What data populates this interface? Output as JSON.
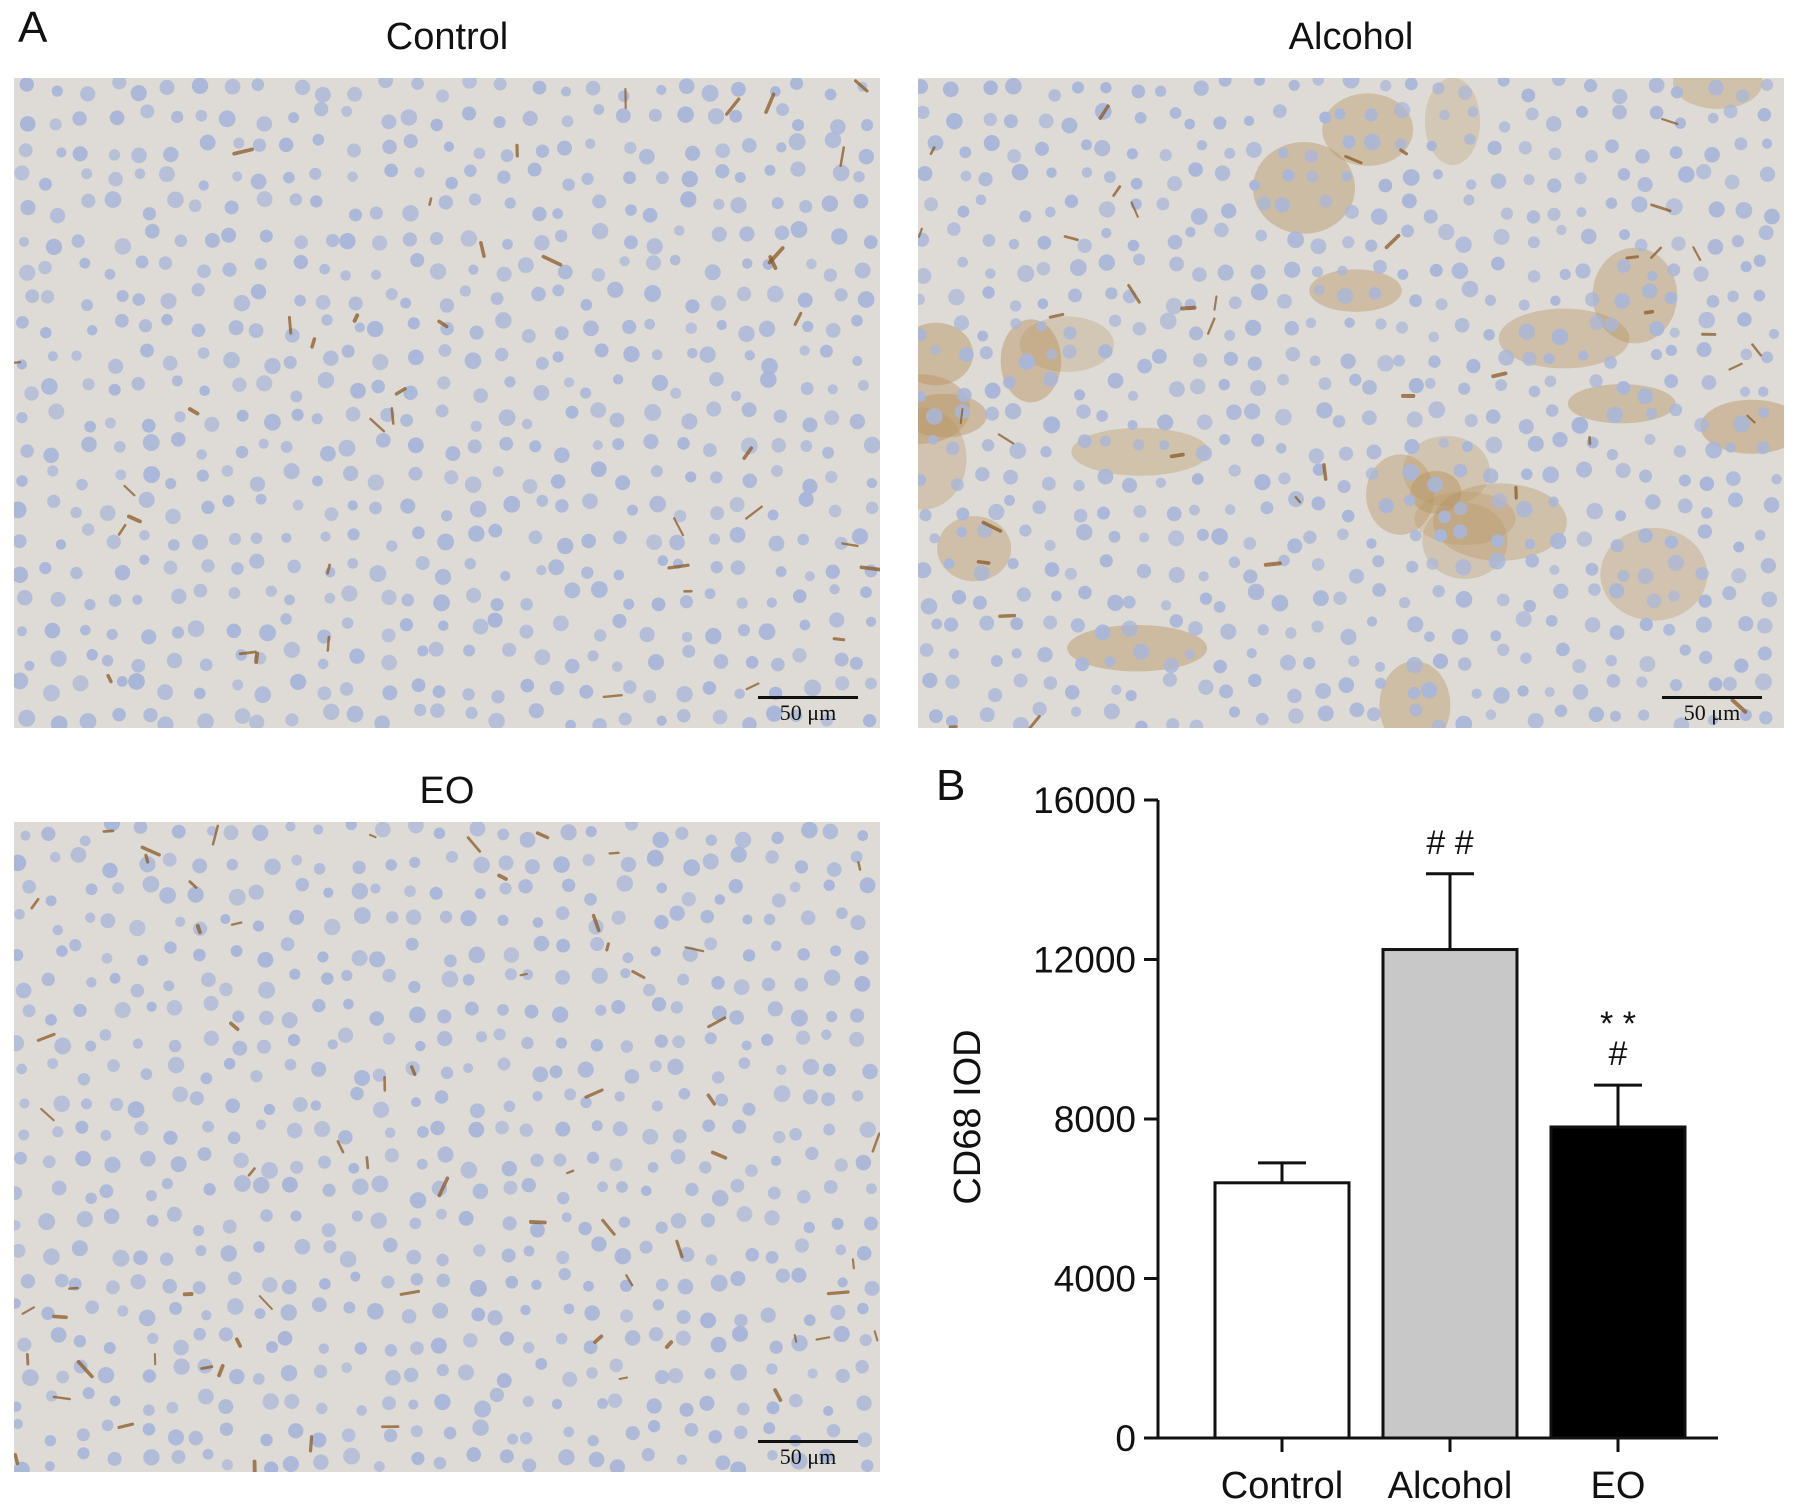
{
  "panel_a": {
    "letter": "A",
    "micrographs": [
      {
        "title": "Control",
        "scale_label": "50 μm",
        "staining": "sparse"
      },
      {
        "title": "Alcohol",
        "scale_label": "50 μm",
        "staining": "heavy"
      },
      {
        "title": "EO",
        "scale_label": "50 μm",
        "staining": "moderate"
      }
    ]
  },
  "panel_b": {
    "letter": "B"
  },
  "chart_data": {
    "type": "bar",
    "categories": [
      "Control",
      "Alcohol",
      "EO"
    ],
    "values": [
      6400,
      12250,
      7800
    ],
    "errors": [
      500,
      1900,
      1050
    ],
    "bar_colors": [
      "#ffffff",
      "#c8c8c8",
      "#000000"
    ],
    "annotations": [
      {
        "category": "Alcohol",
        "lines": [
          "# #"
        ]
      },
      {
        "category": "EO",
        "lines": [
          "* *",
          "#"
        ]
      }
    ],
    "xlabel": "",
    "ylabel": "CD68 IOD",
    "ylim": [
      0,
      16000
    ],
    "yticks": [
      0,
      4000,
      8000,
      12000,
      16000
    ],
    "grid": false
  }
}
